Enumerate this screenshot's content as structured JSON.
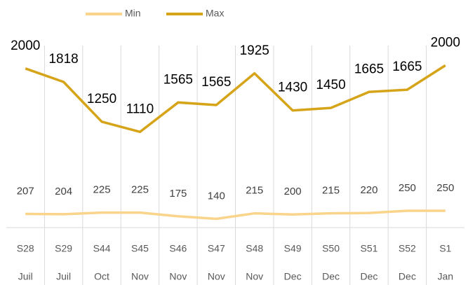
{
  "chart_data": {
    "type": "line",
    "stacked": true,
    "categories": [
      "S28",
      "S29",
      "S44",
      "S45",
      "S46",
      "S47",
      "S48",
      "S49",
      "S50",
      "S51",
      "S52",
      "S1"
    ],
    "months": [
      "Juil",
      "Juil",
      "Oct",
      "Nov",
      "Nov",
      "Nov",
      "Nov",
      "Dec",
      "Dec",
      "Dec",
      "Dec",
      "Jan"
    ],
    "series": [
      {
        "name": "Min",
        "color": "#fad48a",
        "values": [
          207,
          204,
          225,
          225,
          175,
          140,
          215,
          200,
          215,
          220,
          250,
          250
        ]
      },
      {
        "name": "Max",
        "color": "#d6a419",
        "values": [
          2000,
          1818,
          1250,
          1110,
          1565,
          1565,
          1925,
          1430,
          1450,
          1665,
          1665,
          2000
        ]
      }
    ],
    "ylim": [
      0,
      2600
    ],
    "legend": "top"
  }
}
